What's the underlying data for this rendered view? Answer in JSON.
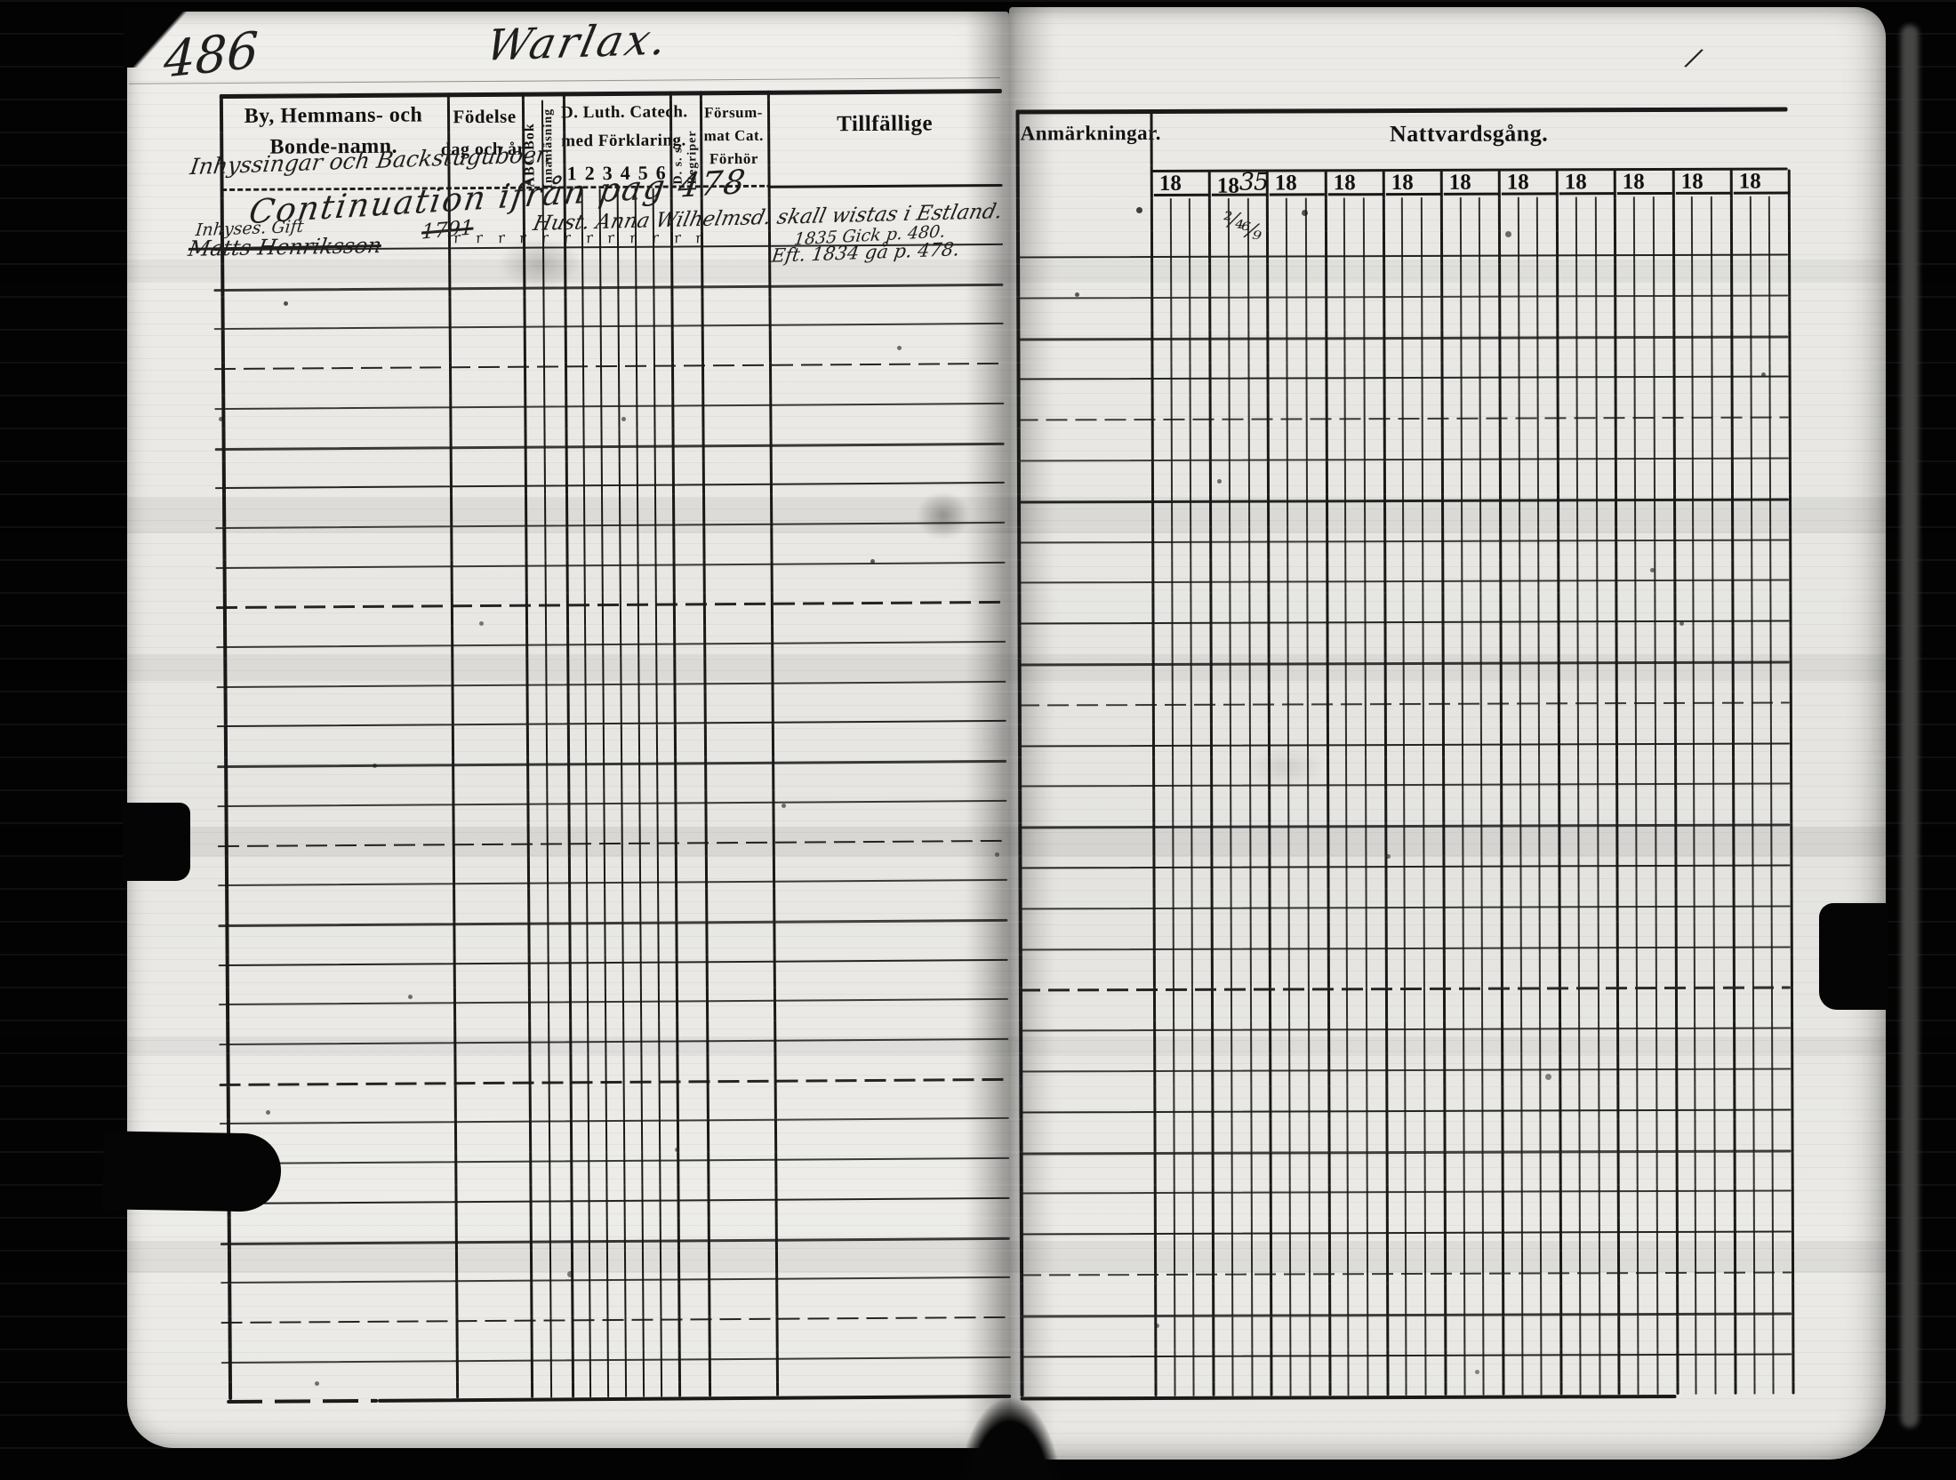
{
  "page": {
    "left_number": "486",
    "title": "Warlax.",
    "right_corner_mark": "∕"
  },
  "left_table": {
    "header": {
      "name_line1": "By, Hemmans- och",
      "name_line2": "Bonde-namn.",
      "name_annotation": "Inhyssingar och Backstuguboer.",
      "birth_line1": "Födelse",
      "birth_line2": "dag och år",
      "abc_vertical": "ABC Bok",
      "reading_vertical": "Innanläsning",
      "catech_line1": "D. Luth. Catech.",
      "catech_line2": "med Förklaring.",
      "catech_numbers": [
        "1",
        "2",
        "3",
        "4",
        "5",
        "6"
      ],
      "begriper_vertical_1": "D. s. s.",
      "begriper_vertical_2": "Begriper",
      "missed_line1": "Försum-",
      "missed_line2": "mat Cat.",
      "missed_line3": "Förhör",
      "occasional": "Tillfällige"
    },
    "entries": {
      "continuation_note": "Continuation ifrån pag 478",
      "status_note": "Inhyses. Gift",
      "struck_name": "Matts Henriksson",
      "birth_year": "1791",
      "ditto_mark": "r",
      "ditto_count": 12,
      "note_line1": "Hust. Anna Wilhelmsd. skall wistas i Estland.",
      "note_line2": "1835 Gick p. 480.",
      "note_line3": "Eft. 1834 gå p. 478."
    }
  },
  "right_table": {
    "remarks_header": "Anmärkningar.",
    "communion_header": "Nattvardsgång.",
    "year_cells": [
      {
        "printed": "18",
        "handwritten": ""
      },
      {
        "printed": "18",
        "handwritten": "35"
      },
      {
        "printed": "18",
        "handwritten": ""
      },
      {
        "printed": "18",
        "handwritten": ""
      },
      {
        "printed": "18",
        "handwritten": ""
      },
      {
        "printed": "18",
        "handwritten": ""
      },
      {
        "printed": "18",
        "handwritten": ""
      },
      {
        "printed": "18",
        "handwritten": ""
      },
      {
        "printed": "18",
        "handwritten": ""
      },
      {
        "printed": "18",
        "handwritten": ""
      },
      {
        "printed": "18",
        "handwritten": ""
      }
    ],
    "communion_marks": [
      "²⁄₄",
      "⁶⁄₉"
    ]
  }
}
